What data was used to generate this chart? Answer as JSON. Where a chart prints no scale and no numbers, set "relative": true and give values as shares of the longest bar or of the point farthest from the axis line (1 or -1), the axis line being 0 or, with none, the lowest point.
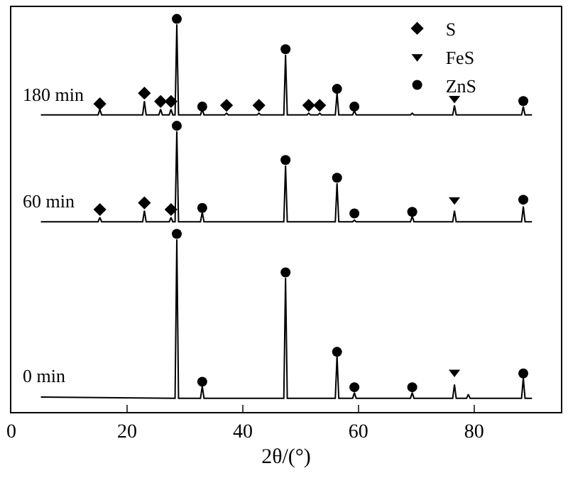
{
  "chart_data": {
    "type": "line",
    "relative": true,
    "xlabel": "2θ/(°)",
    "xlim": [
      0,
      95
    ],
    "xticks": [
      0,
      20,
      40,
      60,
      80
    ],
    "grid": false,
    "legend": "top right",
    "tick_labels": "x",
    "line_style": "solid",
    "series": [
      {
        "name": "0 min",
        "color": "#000000",
        "x": [
          5.1,
          28.3,
          28.6,
          28.9,
          32.7,
          33.0,
          33.3,
          47.1,
          47.4,
          47.7,
          56.0,
          56.3,
          56.6,
          59.0,
          59.3,
          59.6,
          69.0,
          69.3,
          69.6,
          76.3,
          76.6,
          76.9,
          78.7,
          79.0,
          79.3,
          88.2,
          88.5,
          88.8,
          90.0
        ],
        "values": [
          0.038,
          0.035,
          0.439,
          0.035,
          0.035,
          0.066,
          0.035,
          0.035,
          0.341,
          0.035,
          0.035,
          0.143,
          0.035,
          0.035,
          0.049,
          0.035,
          0.035,
          0.049,
          0.035,
          0.035,
          0.07,
          0.035,
          0.035,
          0.045,
          0.035,
          0.035,
          0.087,
          0.035,
          0.035
        ]
      },
      {
        "name": "60 min",
        "color": "#000000",
        "x": [
          5.1,
          15.0,
          15.3,
          15.6,
          22.7,
          23.0,
          23.3,
          27.3,
          27.6,
          27.9,
          28.3,
          28.6,
          28.9,
          32.7,
          33.0,
          33.3,
          47.1,
          47.4,
          47.7,
          56.0,
          56.3,
          56.6,
          59.0,
          59.3,
          59.6,
          69.0,
          69.3,
          69.6,
          76.3,
          76.6,
          76.9,
          88.2,
          88.5,
          88.8,
          90.0
        ],
        "values": [
          0.484,
          0.484,
          0.495,
          0.484,
          0.484,
          0.512,
          0.484,
          0.484,
          0.495,
          0.484,
          0.484,
          0.714,
          0.484,
          0.484,
          0.509,
          0.484,
          0.484,
          0.627,
          0.484,
          0.484,
          0.582,
          0.484,
          0.484,
          0.488,
          0.484,
          0.484,
          0.498,
          0.484,
          0.484,
          0.512,
          0.484,
          0.484,
          0.523,
          0.484,
          0.484
        ]
      },
      {
        "name": "180 min",
        "color": "#000000",
        "x": [
          5.1,
          15.0,
          15.3,
          15.6,
          22.7,
          23.0,
          23.3,
          25.5,
          25.8,
          26.1,
          27.3,
          27.6,
          27.9,
          28.3,
          28.6,
          28.9,
          32.7,
          33.0,
          33.3,
          36.9,
          37.2,
          37.5,
          42.5,
          42.8,
          43.1,
          47.1,
          47.4,
          47.7,
          51.1,
          51.4,
          51.7,
          53.0,
          53.3,
          53.6,
          56.0,
          56.3,
          56.6,
          59.0,
          59.3,
          59.6,
          69.0,
          69.3,
          69.6,
          76.3,
          76.6,
          76.9,
          88.2,
          88.5,
          88.8,
          90.0
        ],
        "values": [
          0.756,
          0.756,
          0.77,
          0.756,
          0.756,
          0.791,
          0.756,
          0.756,
          0.77,
          0.756,
          0.756,
          0.77,
          0.756,
          0.756,
          0.986,
          0.756,
          0.756,
          0.77,
          0.756,
          0.756,
          0.76,
          0.756,
          0.756,
          0.76,
          0.756,
          0.756,
          0.909,
          0.756,
          0.756,
          0.76,
          0.756,
          0.756,
          0.76,
          0.756,
          0.756,
          0.812,
          0.756,
          0.756,
          0.767,
          0.756,
          0.756,
          0.76,
          0.756,
          0.756,
          0.78,
          0.756,
          0.756,
          0.777,
          0.756,
          0.756
        ]
      },
      {
        "name": "S",
        "type": "scatter",
        "marker": "diamond",
        "color": "#000000",
        "x": [
          15.3,
          23.0,
          25.8,
          27.6,
          37.2,
          42.8,
          51.4,
          53.3,
          15.3,
          23.0,
          27.6
        ],
        "values": [
          0.784,
          0.811,
          0.79,
          0.79,
          0.78,
          0.78,
          0.78,
          0.78,
          0.515,
          0.532,
          0.515
        ]
      },
      {
        "name": "FeS",
        "type": "scatter",
        "marker": "triangle",
        "color": "#000000",
        "x": [
          76.6,
          76.6,
          76.6
        ],
        "values": [
          0.798,
          0.54,
          0.101
        ]
      },
      {
        "name": "ZnS",
        "type": "scatter",
        "marker": "circle",
        "color": "#000000",
        "x": [
          28.6,
          33.0,
          47.4,
          56.3,
          59.3,
          88.5,
          28.6,
          33.0,
          47.4,
          56.3,
          59.3,
          69.3,
          88.5,
          28.6,
          33.0,
          47.4,
          56.3,
          59.3,
          69.3,
          88.5
        ],
        "values": [
          1.0,
          0.777,
          0.923,
          0.822,
          0.777,
          0.791,
          0.728,
          0.519,
          0.641,
          0.596,
          0.505,
          0.509,
          0.54,
          0.453,
          0.077,
          0.355,
          0.153,
          0.063,
          0.063,
          0.098
        ]
      }
    ]
  }
}
